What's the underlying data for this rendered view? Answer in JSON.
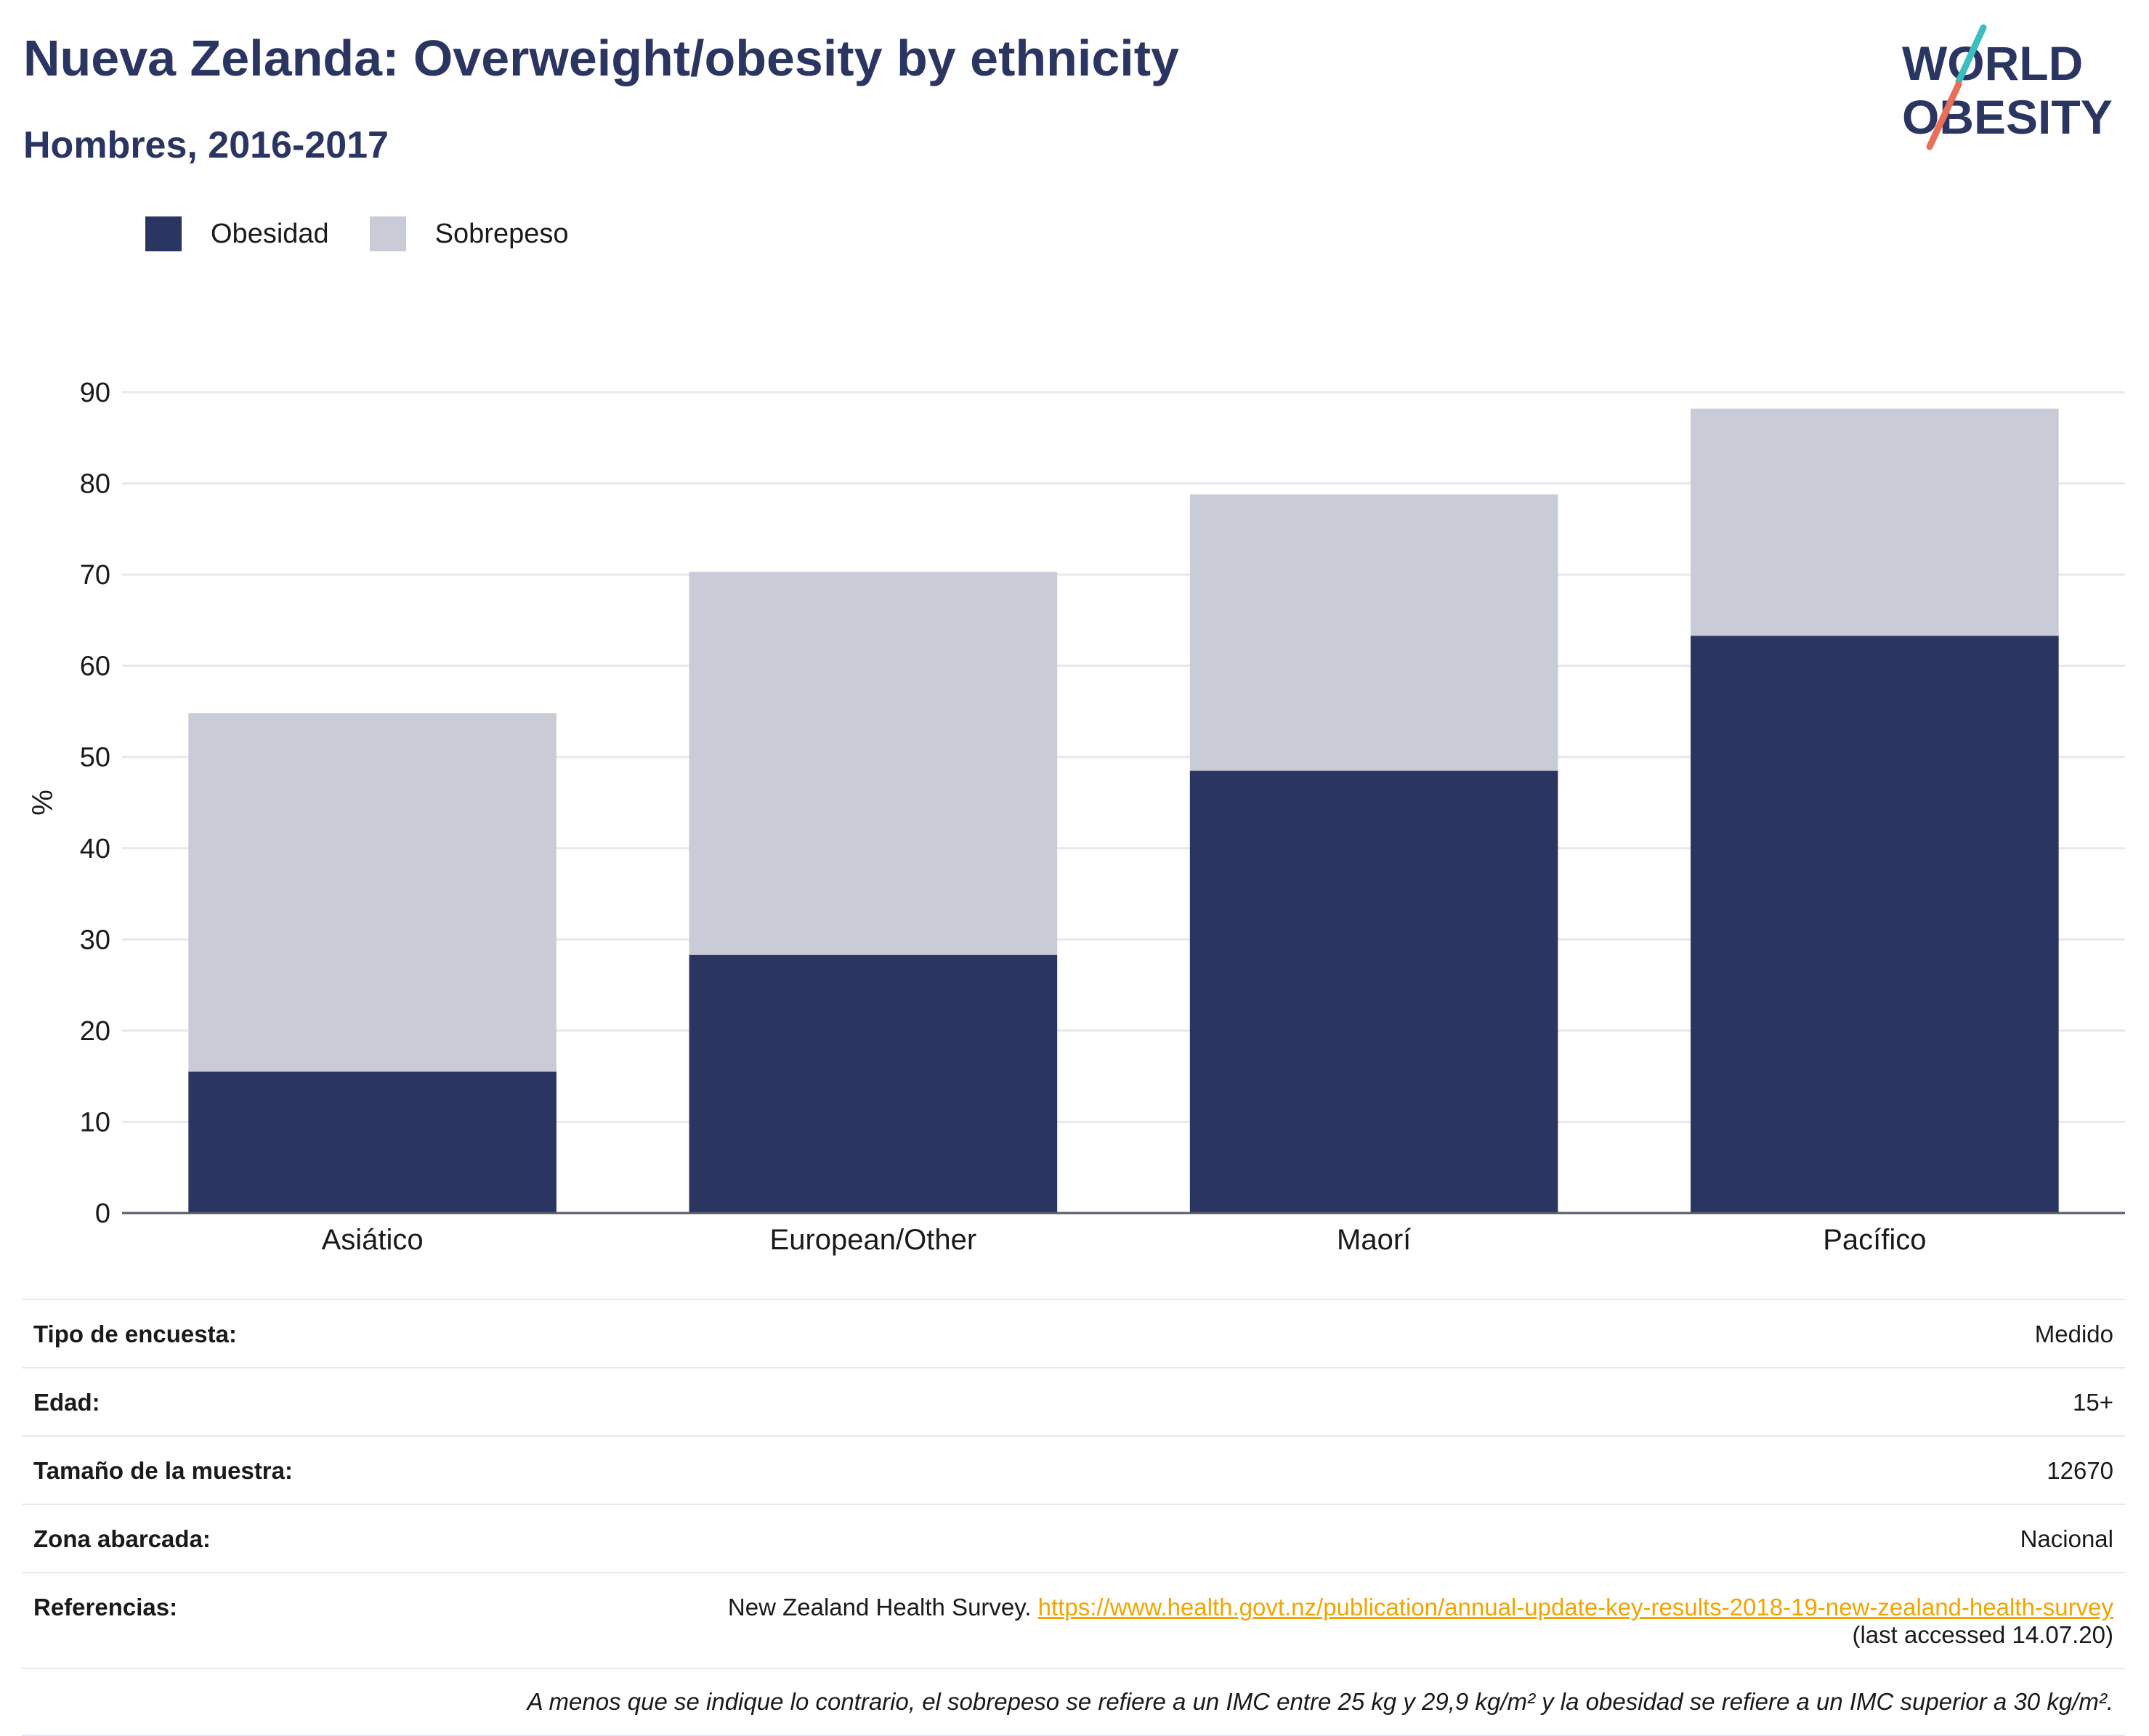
{
  "header": {
    "title": "Nueva Zelanda: Overweight/obesity by ethnicity",
    "subtitle": "Hombres, 2016-2017"
  },
  "logo": {
    "line1": "WORLD",
    "line2": "OBESITY",
    "accent_teal": "#3dbdbd",
    "accent_coral": "#e8705a",
    "brand": "#2b3562"
  },
  "colors": {
    "obesity": "#2b3562",
    "overweight": "#c9cbd6",
    "link": "#f0a500"
  },
  "legend": {
    "items": [
      {
        "label": "Obesidad"
      },
      {
        "label": "Sobrepeso"
      }
    ]
  },
  "chart_data": {
    "type": "bar",
    "stacked": true,
    "title": "Nueva Zelanda: Overweight/obesity by ethnicity",
    "subtitle": "Hombres, 2016-2017",
    "xlabel": "",
    "ylabel": "%",
    "ylim": [
      0,
      90
    ],
    "yticks": [
      0,
      10,
      20,
      30,
      40,
      50,
      60,
      70,
      80,
      90
    ],
    "grid": true,
    "legend_position": "top-left",
    "categories": [
      "Asiático",
      "European/Other",
      "Maorí",
      "Pacífico"
    ],
    "series": [
      {
        "name": "Obesidad",
        "values": [
          15.5,
          28.3,
          48.5,
          63.3
        ]
      },
      {
        "name": "Sobrepeso",
        "values": [
          39.3,
          42.0,
          30.3,
          24.9
        ]
      }
    ]
  },
  "info": {
    "rows": [
      {
        "label": "Tipo de encuesta:",
        "value": "Medido"
      },
      {
        "label": "Edad:",
        "value": "15+"
      },
      {
        "label": "Tamaño de la muestra:",
        "value": "12670"
      },
      {
        "label": "Zona abarcada:",
        "value": "Nacional"
      }
    ],
    "references": {
      "label": "Referencias:",
      "source": "New Zealand Health Survey.",
      "url": "https://www.health.govt.nz/publication/annual-update-key-results-2018-19-new-zealand-health-survey",
      "accessed": "(last accessed 14.07.20)"
    },
    "note": "A menos que se indique lo contrario, el sobrepeso se refiere a un IMC entre 25 kg y 29,9 kg/m² y la obesidad se refiere a un IMC superior a 30 kg/m²."
  }
}
